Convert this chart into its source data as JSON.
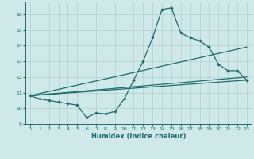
{
  "xlabel": "Humidex (Indice chaleur)",
  "xlim": [
    -0.5,
    23.5
  ],
  "ylim": [
    9,
    16.8
  ],
  "yticks": [
    9,
    10,
    11,
    12,
    13,
    14,
    15,
    16
  ],
  "xticks": [
    0,
    1,
    2,
    3,
    4,
    5,
    6,
    7,
    8,
    9,
    10,
    11,
    12,
    13,
    14,
    15,
    16,
    17,
    18,
    19,
    20,
    21,
    22,
    23
  ],
  "bg_color": "#cfe8e8",
  "line_color": "#1f6b6b",
  "grid_color": "#b0d0d0",
  "main_line": {
    "x": [
      0,
      1,
      2,
      3,
      4,
      5,
      6,
      7,
      8,
      9,
      10,
      11,
      12,
      13,
      14,
      15,
      16,
      17,
      18,
      19,
      20,
      21,
      22,
      23
    ],
    "y": [
      10.8,
      10.6,
      10.5,
      10.4,
      10.3,
      10.2,
      9.4,
      9.7,
      9.65,
      9.8,
      10.6,
      11.8,
      13.0,
      14.5,
      16.3,
      16.4,
      14.8,
      14.5,
      14.3,
      13.9,
      12.8,
      12.4,
      12.4,
      11.8
    ]
  },
  "straight_lines": [
    {
      "x": [
        0,
        23
      ],
      "y": [
        10.8,
        11.8
      ]
    },
    {
      "x": [
        0,
        23
      ],
      "y": [
        10.8,
        12.0
      ]
    },
    {
      "x": [
        0,
        23
      ],
      "y": [
        10.8,
        13.9
      ]
    }
  ]
}
